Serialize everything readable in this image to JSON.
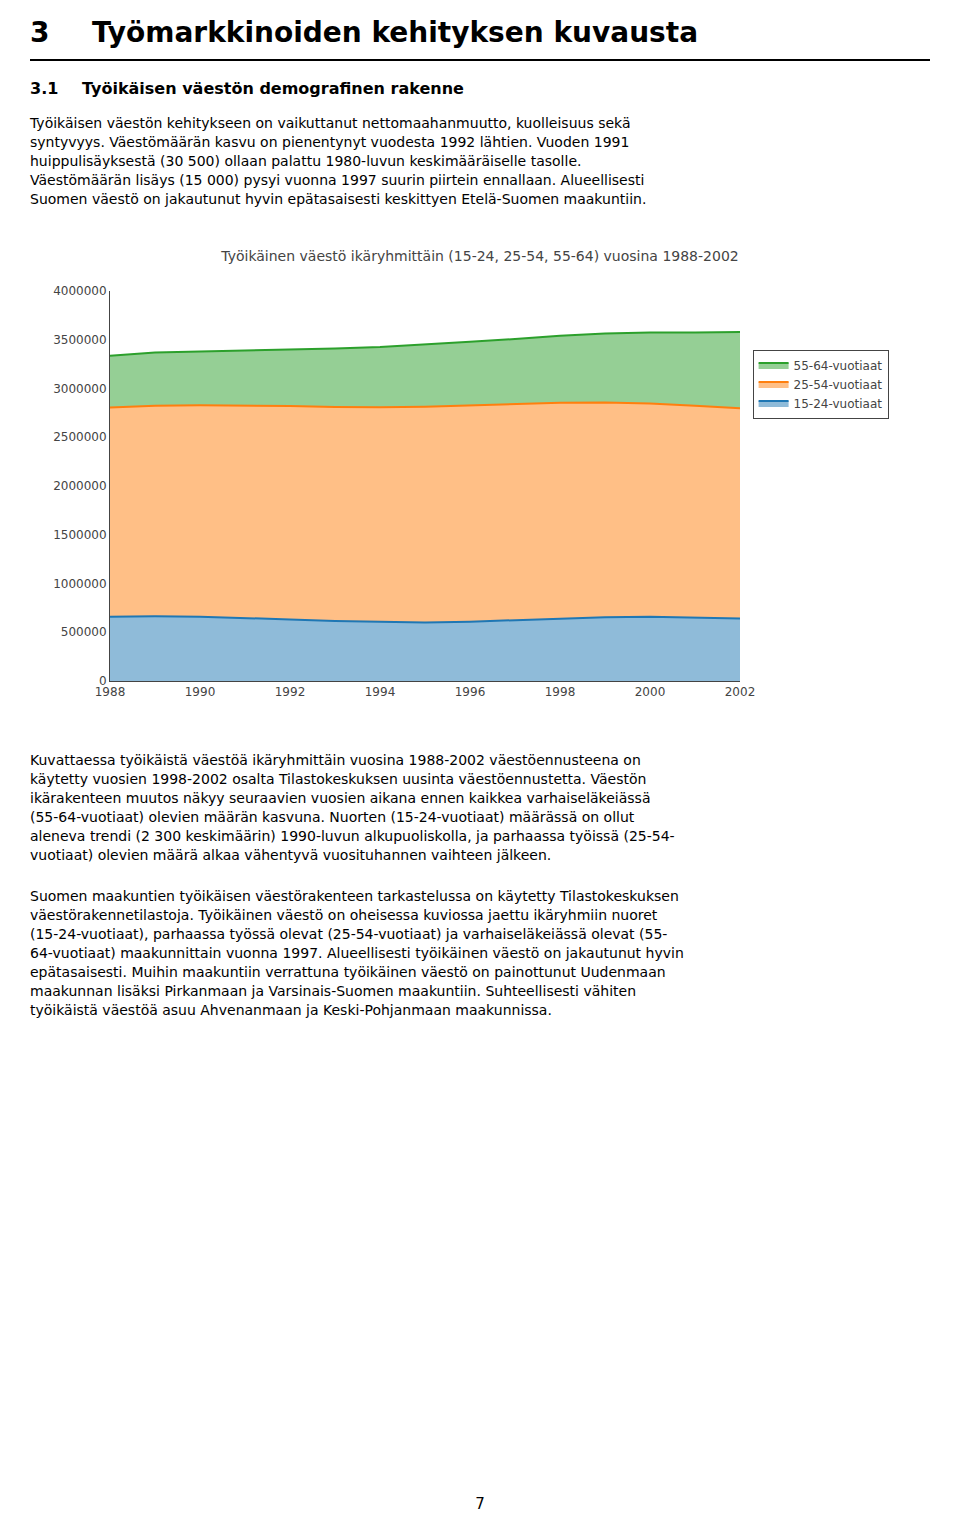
{
  "page": {
    "heading_number": "3",
    "heading_text": "Työmarkkinoiden kehityksen kuvausta",
    "section_number": "3.1",
    "section_text": "Työikäisen väestön demografinen rakenne",
    "paragraphs_before": [
      [
        "Työikäisen väestön kehitykseen on vaikuttanut nettomaahanmuutto, kuolleisuus sekä",
        "syntyvyys. Väestömäärän kasvu on pienentynyt vuodesta 1992 lähtien. Vuoden 1991",
        "huippulisäyksestä (30 500) ollaan palattu 1980-luvun keskimääräiselle tasolle.",
        "Väestömäärän lisäys (15 000) pysyi vuonna 1997 suurin piirtein ennallaan. Alueellisesti",
        "Suomen väestö on jakautunut hyvin epätasaisesti keskittyen Etelä-Suomen maakuntiin."
      ]
    ],
    "paragraphs_after": [
      [
        "Kuvattaessa työikäistä väestöä ikäryhmittäin vuosina 1988-2002 väestöennusteena on",
        "käytetty vuosien 1998-2002 osalta Tilastokeskuksen uusinta väestöennustetta. Väestön",
        "ikärakenteen muutos näkyy seuraavien vuosien aikana ennen kaikkea varhaiseläkeiässä",
        "(55-64-vuotiaat) olevien määrän kasvuna. Nuorten (15-24-vuotiaat) määrässä on ollut",
        "aleneva trendi (2 300 keskimäärin) 1990-luvun alkupuoliskolla, ja parhaassa työissä (25-54-",
        "vuotiaat) olevien määrä alkaa vähentyvä vuosituhannen vaihteen jälkeen."
      ],
      [
        "Suomen maakuntien työikäisen väestörakenteen tarkastelussa on käytetty Tilastokeskuksen",
        "väestörakennetilastoja. Työikäinen väestö on oheisessa kuviossa jaettu ikäryhmiin nuoret",
        "(15-24-vuotiaat), parhaassa työssä olevat (25-54-vuotiaat) ja varhaiseläkeiässä olevat (55-",
        "64-vuotiaat) maakunnittain vuonna 1997. Alueellisesti työikäinen väestö on jakautunut hyvin",
        "epätasaisesti. Muihin maakuntiin verrattuna työikäinen väestö on painottunut Uudenmaan",
        "maakunnan lisäksi Pirkanmaan ja Varsinais-Suomen maakuntiin. Suhteellisesti vähiten",
        "työikäistä väestöä asuu Ahvenanmaan ja Keski-Pohjanmaan maakunnissa."
      ]
    ],
    "page_number": "7"
  },
  "chart_data": {
    "type": "area",
    "stacked": true,
    "title": "Työikäinen väestö ikäryhmittäin (15-24, 25-54, 55-64) vuosina 1988-2002",
    "x": [
      1988,
      1989,
      1990,
      1991,
      1992,
      1993,
      1994,
      1995,
      1996,
      1997,
      1998,
      1999,
      2000,
      2001,
      2002
    ],
    "series": [
      {
        "name": "15-24-vuotiaat",
        "values": [
          660000,
          663000,
          658000,
          648000,
          632000,
          615000,
          605000,
          600000,
          608000,
          622000,
          642000,
          655000,
          658000,
          650000,
          640000
        ]
      },
      {
        "name": "25-54-vuotiaat",
        "values": [
          2145000,
          2160000,
          2170000,
          2178000,
          2188000,
          2196000,
          2202000,
          2212000,
          2218000,
          2218000,
          2212000,
          2202000,
          2188000,
          2172000,
          2158000
        ]
      },
      {
        "name": "55-64-vuotiaat",
        "values": [
          530000,
          545000,
          552000,
          562000,
          578000,
          598000,
          618000,
          638000,
          653000,
          668000,
          688000,
          708000,
          728000,
          752000,
          782000
        ]
      }
    ],
    "xlim": [
      1988,
      2002
    ],
    "xticks": [
      1988,
      1990,
      1992,
      1994,
      1996,
      1998,
      2000,
      2002
    ],
    "ylim": [
      0,
      4000000
    ],
    "yticks": [
      0,
      500000,
      1000000,
      1500000,
      2000000,
      2500000,
      3000000,
      3500000,
      4000000
    ],
    "grid": false,
    "legend": "right"
  }
}
